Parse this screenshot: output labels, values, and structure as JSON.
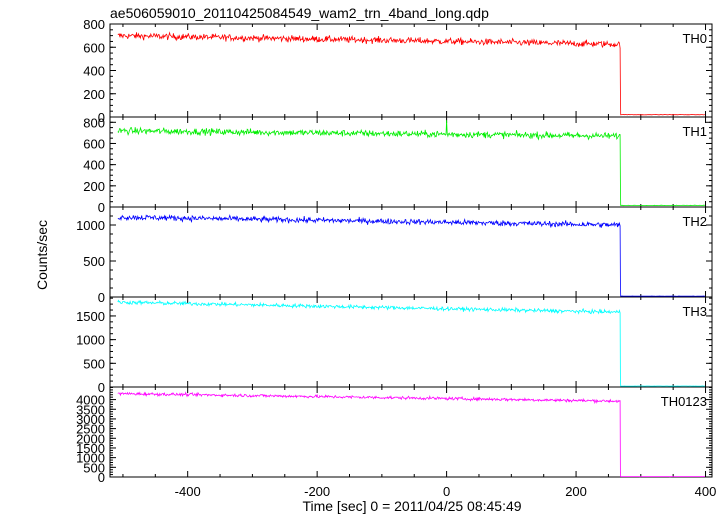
{
  "chart_data": {
    "type": "line",
    "title": "ae506059010_20110425084549_wam2_trn_4band_long.qdp",
    "xlabel": "Time [sec] 0 = 2011/04/25 08:45:49",
    "ylabel": "Counts/sec",
    "xlim": [
      -520,
      410
    ],
    "xticks": [
      -400,
      -200,
      0,
      200,
      400
    ],
    "grid": false,
    "drop_time": 268,
    "data_start": -508,
    "data_end": 400,
    "panels": [
      {
        "name": "TH0",
        "color": "#ff0000",
        "ylim": [
          0,
          800
        ],
        "yticks": [
          0,
          200,
          400,
          600,
          800
        ],
        "level_start": 700,
        "level_end": 625,
        "noise": 20,
        "post_level": 20
      },
      {
        "name": "TH1",
        "color": "#00ee00",
        "ylim": [
          0,
          850
        ],
        "yticks": [
          0,
          200,
          400,
          600,
          800
        ],
        "level_start": 720,
        "level_end": 670,
        "noise": 22,
        "post_level": 15,
        "spike_time": 0,
        "spike_value": 820
      },
      {
        "name": "TH2",
        "color": "#0000ff",
        "ylim": [
          0,
          1250
        ],
        "yticks": [
          0,
          500,
          1000
        ],
        "level_start": 1110,
        "level_end": 1000,
        "noise": 28,
        "post_level": 12
      },
      {
        "name": "TH3",
        "color": "#00ffff",
        "ylim": [
          0,
          1900
        ],
        "yticks": [
          0,
          500,
          1000,
          1500
        ],
        "level_start": 1790,
        "level_end": 1580,
        "noise": 28,
        "post_level": 20
      },
      {
        "name": "TH0123",
        "color": "#ff00ff",
        "ylim": [
          0,
          4650
        ],
        "yticks": [
          0,
          500,
          1000,
          1500,
          2000,
          2500,
          3000,
          3500,
          4000
        ],
        "level_start": 4310,
        "level_end": 3920,
        "noise": 55,
        "post_level": 20
      }
    ]
  }
}
